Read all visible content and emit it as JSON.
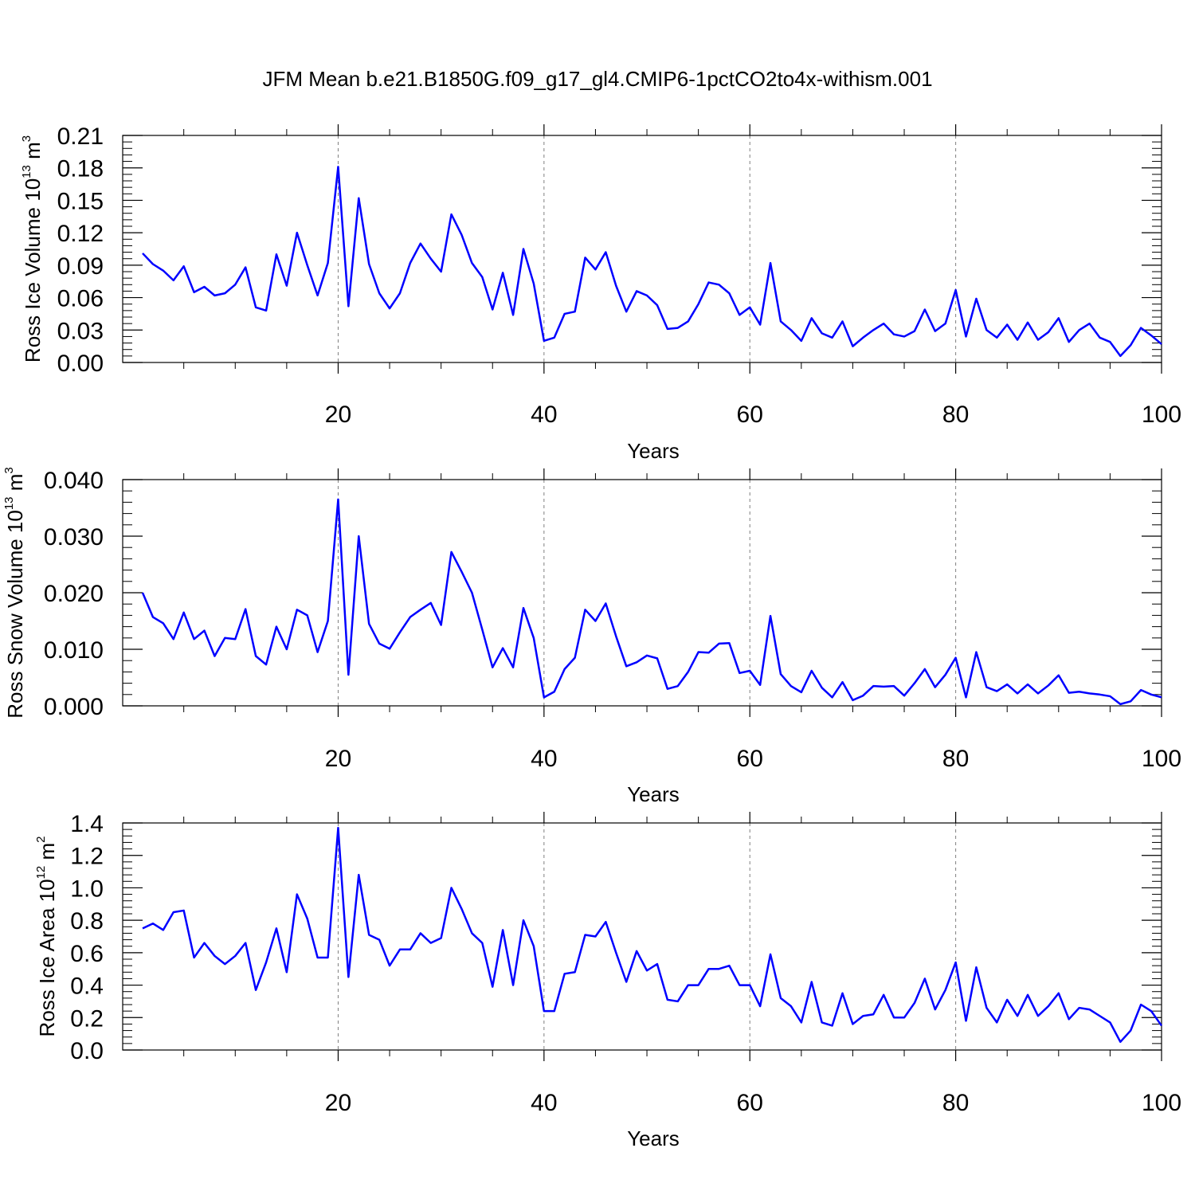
{
  "title": "JFM Mean b.e21.B1850G.f09_g17_gl4.CMIP6-1pctCO2to4x-withism.001",
  "colors": {
    "line": "#0000ff",
    "axis": "#000000",
    "grid": "#808080"
  },
  "chart_data": [
    {
      "type": "line",
      "series_name": "Ross Ice Volume",
      "ylabel": {
        "base": "Ross Ice Volume 10",
        "exponent": "13",
        "unit": " m",
        "unit_exponent": "3"
      },
      "xlabel": "Years",
      "xlim": [
        1,
        100
      ],
      "ylim": [
        0,
        0.21
      ],
      "xticks": [
        20,
        40,
        60,
        80,
        100
      ],
      "xtick_labels": [
        "20",
        "40",
        "60",
        "80",
        "100"
      ],
      "yticks": [
        0,
        0.03,
        0.06,
        0.09,
        0.12,
        0.15,
        0.18,
        0.21
      ],
      "ytick_labels": [
        "0.00",
        "0.03",
        "0.06",
        "0.09",
        "0.12",
        "0.15",
        "0.18",
        "0.21"
      ],
      "grid": "vertical dashed at major x ticks",
      "values": [
        0.101,
        0.091,
        0.085,
        0.076,
        0.089,
        0.065,
        0.07,
        0.062,
        0.064,
        0.072,
        0.088,
        0.051,
        0.048,
        0.1,
        0.071,
        0.12,
        0.09,
        0.062,
        0.092,
        0.181,
        0.052,
        0.152,
        0.091,
        0.064,
        0.05,
        0.064,
        0.092,
        0.11,
        0.096,
        0.084,
        0.137,
        0.118,
        0.092,
        0.079,
        0.049,
        0.083,
        0.044,
        0.105,
        0.073,
        0.02,
        0.023,
        0.045,
        0.047,
        0.097,
        0.086,
        0.102,
        0.071,
        0.047,
        0.066,
        0.062,
        0.053,
        0.031,
        0.032,
        0.038,
        0.054,
        0.074,
        0.072,
        0.064,
        0.044,
        0.051,
        0.035,
        0.092,
        0.038,
        0.03,
        0.02,
        0.041,
        0.027,
        0.023,
        0.038,
        0.015,
        0.023,
        0.03,
        0.036,
        0.026,
        0.024,
        0.029,
        0.049,
        0.029,
        0.036,
        0.067,
        0.024,
        0.059,
        0.03,
        0.023,
        0.035,
        0.021,
        0.037,
        0.021,
        0.028,
        0.041,
        0.019,
        0.03,
        0.036,
        0.023,
        0.019,
        0.006,
        0.016,
        0.032,
        0.025,
        0.017
      ]
    },
    {
      "type": "line",
      "series_name": "Ross Snow Volume",
      "ylabel": {
        "base": "Ross Snow Volume 10",
        "exponent": "13",
        "unit": " m",
        "unit_exponent": "3"
      },
      "xlabel": "Years",
      "xlim": [
        1,
        100
      ],
      "ylim": [
        0,
        0.04
      ],
      "xticks": [
        20,
        40,
        60,
        80,
        100
      ],
      "xtick_labels": [
        "20",
        "40",
        "60",
        "80",
        "100"
      ],
      "yticks": [
        0,
        0.01,
        0.02,
        0.03,
        0.04
      ],
      "ytick_labels": [
        "0.000",
        "0.010",
        "0.020",
        "0.030",
        "0.040"
      ],
      "grid": "vertical dashed at major x ticks",
      "values": [
        0.02,
        0.0157,
        0.0146,
        0.0118,
        0.0165,
        0.0118,
        0.0133,
        0.0088,
        0.012,
        0.0118,
        0.0171,
        0.0088,
        0.0073,
        0.014,
        0.01,
        0.017,
        0.016,
        0.0095,
        0.015,
        0.0365,
        0.0055,
        0.03,
        0.0145,
        0.011,
        0.0101,
        0.013,
        0.0157,
        0.017,
        0.0182,
        0.0143,
        0.0272,
        0.0237,
        0.02,
        0.0135,
        0.0068,
        0.0102,
        0.0068,
        0.0173,
        0.012,
        0.0015,
        0.0025,
        0.0065,
        0.0085,
        0.017,
        0.015,
        0.0181,
        0.0123,
        0.007,
        0.0077,
        0.0089,
        0.0084,
        0.003,
        0.0035,
        0.006,
        0.0095,
        0.0094,
        0.011,
        0.0111,
        0.0058,
        0.0062,
        0.0037,
        0.0159,
        0.0056,
        0.0035,
        0.0024,
        0.0062,
        0.0032,
        0.0015,
        0.0042,
        0.001,
        0.0018,
        0.0035,
        0.0034,
        0.0035,
        0.0018,
        0.004,
        0.0065,
        0.0033,
        0.0055,
        0.0085,
        0.0015,
        0.0095,
        0.0033,
        0.0026,
        0.0038,
        0.0022,
        0.0038,
        0.0022,
        0.0036,
        0.0054,
        0.0023,
        0.0025,
        0.0022,
        0.002,
        0.0017,
        0.0003,
        0.0008,
        0.0028,
        0.002,
        0.0015
      ]
    },
    {
      "type": "line",
      "series_name": "Ross Ice Area",
      "ylabel": {
        "base": "Ross Ice Area 10",
        "exponent": "12",
        "unit": " m",
        "unit_exponent": "2"
      },
      "xlabel": "Years",
      "xlim": [
        1,
        100
      ],
      "ylim": [
        0,
        1.4
      ],
      "xticks": [
        20,
        40,
        60,
        80,
        100
      ],
      "xtick_labels": [
        "20",
        "40",
        "60",
        "80",
        "100"
      ],
      "yticks": [
        0,
        0.2,
        0.4,
        0.6,
        0.8,
        1.0,
        1.2,
        1.4
      ],
      "ytick_labels": [
        "0.0",
        "0.2",
        "0.4",
        "0.6",
        "0.8",
        "1.0",
        "1.2",
        "1.4"
      ],
      "grid": "vertical dashed at major x ticks",
      "values": [
        0.75,
        0.78,
        0.74,
        0.85,
        0.86,
        0.57,
        0.66,
        0.58,
        0.53,
        0.58,
        0.66,
        0.37,
        0.54,
        0.75,
        0.48,
        0.96,
        0.81,
        0.57,
        0.57,
        1.37,
        0.45,
        1.08,
        0.71,
        0.68,
        0.52,
        0.62,
        0.62,
        0.72,
        0.66,
        0.69,
        1.0,
        0.87,
        0.72,
        0.66,
        0.39,
        0.74,
        0.4,
        0.8,
        0.64,
        0.24,
        0.24,
        0.47,
        0.48,
        0.71,
        0.7,
        0.79,
        0.6,
        0.42,
        0.61,
        0.49,
        0.53,
        0.31,
        0.3,
        0.4,
        0.4,
        0.5,
        0.5,
        0.52,
        0.4,
        0.4,
        0.27,
        0.59,
        0.32,
        0.27,
        0.17,
        0.42,
        0.17,
        0.15,
        0.35,
        0.16,
        0.21,
        0.22,
        0.34,
        0.2,
        0.2,
        0.29,
        0.44,
        0.25,
        0.37,
        0.54,
        0.18,
        0.51,
        0.26,
        0.17,
        0.31,
        0.21,
        0.34,
        0.21,
        0.27,
        0.35,
        0.19,
        0.26,
        0.25,
        0.21,
        0.17,
        0.05,
        0.12,
        0.28,
        0.24,
        0.15
      ]
    }
  ]
}
